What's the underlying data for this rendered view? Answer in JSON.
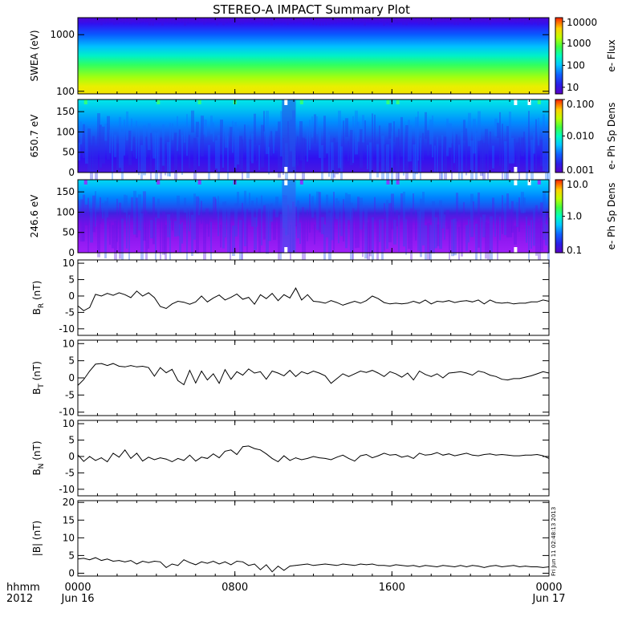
{
  "title": "STEREO-A IMPACT Summary Plot",
  "x_axis": {
    "row1_label": "hhmm",
    "row2_label": "2012",
    "ticks": [
      {
        "hour": 0,
        "top": "0000",
        "bottom": "Jun 16"
      },
      {
        "hour": 8,
        "top": "0800",
        "bottom": ""
      },
      {
        "hour": 16,
        "top": "1600",
        "bottom": ""
      },
      {
        "hour": 24,
        "top": "0000",
        "bottom": "Jun 17"
      }
    ],
    "range_hours": [
      0,
      24
    ]
  },
  "footer_stamp": "Fri Jun 11 02:48:13 2013",
  "spectrograms": [
    {
      "id": "swea",
      "ylabel": "SWEA (eV)",
      "yscale": "log",
      "yrange": [
        90,
        2000
      ],
      "yticks": [
        "100",
        "1000"
      ],
      "ytick_values": [
        100,
        1000
      ],
      "colorbar": {
        "scale": "log",
        "range": [
          5,
          15000
        ],
        "ticks": [
          "10",
          "100",
          "1000",
          "10000"
        ],
        "tick_values": [
          10,
          100,
          1000,
          10000
        ],
        "label": "e- Flux"
      }
    },
    {
      "id": "pad650",
      "ylabel": "650.7 eV",
      "yscale": "linear",
      "yrange": [
        0,
        180
      ],
      "yticks": [
        "0",
        "50",
        "100",
        "150"
      ],
      "ytick_values": [
        0,
        50,
        100,
        150
      ],
      "colorbar": {
        "scale": "log",
        "range": [
          0.001,
          0.1
        ],
        "ticks": [
          "0.001",
          "0.010",
          "0.100"
        ],
        "tick_values": [
          0.001,
          0.01,
          0.1
        ],
        "label": "e- Ph Sp Dens"
      }
    },
    {
      "id": "pad246",
      "ylabel": "246.6 eV",
      "yscale": "linear",
      "yrange": [
        0,
        180
      ],
      "yticks": [
        "0",
        "50",
        "100",
        "150"
      ],
      "ytick_values": [
        0,
        50,
        100,
        150
      ],
      "colorbar": {
        "scale": "log",
        "range": [
          0.1,
          10
        ],
        "ticks": [
          "0.1",
          "1.0",
          "10.0"
        ],
        "tick_values": [
          0.1,
          1,
          10
        ],
        "label": "e- Ph Sp Dens"
      }
    }
  ],
  "chart_data": [
    {
      "type": "line",
      "id": "br",
      "ylabel_main": "B",
      "ylabel_sub": "R",
      "ylabel_unit": "(nT)",
      "ylim": [
        -12,
        11
      ],
      "yticks": [
        "-10",
        "-5",
        "0",
        "5",
        "10"
      ],
      "ytick_values": [
        -10,
        -5,
        0,
        5,
        10
      ],
      "x_hours": [
        0,
        0.3,
        0.6,
        0.9,
        1.2,
        1.5,
        1.8,
        2.1,
        2.4,
        2.7,
        3.0,
        3.3,
        3.6,
        3.9,
        4.2,
        4.5,
        4.8,
        5.1,
        5.4,
        5.7,
        6.0,
        6.3,
        6.6,
        6.9,
        7.2,
        7.5,
        7.8,
        8.1,
        8.4,
        8.7,
        9.0,
        9.3,
        9.6,
        9.9,
        10.2,
        10.5,
        10.8,
        11.1,
        11.4,
        11.7,
        12.0,
        12.3,
        12.6,
        12.9,
        13.2,
        13.5,
        13.8,
        14.1,
        14.4,
        14.7,
        15.0,
        15.3,
        15.6,
        15.9,
        16.2,
        16.5,
        16.8,
        17.1,
        17.4,
        17.7,
        18.0,
        18.3,
        18.6,
        18.9,
        19.2,
        19.5,
        19.8,
        20.1,
        20.4,
        20.7,
        21.0,
        21.3,
        21.6,
        21.9,
        22.2,
        22.5,
        22.8,
        23.1,
        23.4,
        23.7,
        24.0
      ],
      "values": [
        -3,
        -4.5,
        -3.5,
        0.5,
        0,
        0.8,
        0.2,
        1,
        0.4,
        -0.5,
        1.5,
        0,
        1,
        -0.5,
        -3.2,
        -3.8,
        -2.4,
        -1.6,
        -1.9,
        -2.5,
        -1.8,
        0,
        -1.8,
        -0.6,
        0.3,
        -1.2,
        -0.4,
        0.6,
        -1,
        -0.4,
        -2.5,
        0.4,
        -0.8,
        0.8,
        -1.4,
        0.4,
        -0.6,
        2.4,
        -1.2,
        0.4,
        -1.6,
        -1.8,
        -2.2,
        -1.4,
        -2,
        -2.8,
        -2.2,
        -1.6,
        -2.2,
        -1.4,
        0,
        -0.8,
        -2,
        -2.4,
        -2.2,
        -2.4,
        -2.2,
        -1.6,
        -2.2,
        -1.2,
        -2.4,
        -1.6,
        -1.8,
        -1.4,
        -2,
        -1.6,
        -1.4,
        -1.8,
        -1.2,
        -2.4,
        -1.2,
        -2,
        -2.2,
        -2,
        -2.4,
        -2.2,
        -2.2,
        -1.8,
        -1.8,
        -1.2,
        -1.6
      ]
    },
    {
      "type": "line",
      "id": "bt",
      "ylabel_main": "B",
      "ylabel_sub": "T",
      "ylabel_unit": "(nT)",
      "ylim": [
        -11,
        11
      ],
      "yticks": [
        "-10",
        "-5",
        "0",
        "5",
        "10"
      ],
      "ytick_values": [
        -10,
        -5,
        0,
        5,
        10
      ],
      "x_hours": [
        0,
        0.3,
        0.6,
        0.9,
        1.2,
        1.5,
        1.8,
        2.1,
        2.4,
        2.7,
        3.0,
        3.3,
        3.6,
        3.9,
        4.2,
        4.5,
        4.8,
        5.1,
        5.4,
        5.7,
        6.0,
        6.3,
        6.6,
        6.9,
        7.2,
        7.5,
        7.8,
        8.1,
        8.4,
        8.7,
        9.0,
        9.3,
        9.6,
        9.9,
        10.2,
        10.5,
        10.8,
        11.1,
        11.4,
        11.7,
        12.0,
        12.3,
        12.6,
        12.9,
        13.2,
        13.5,
        13.8,
        14.1,
        14.4,
        14.7,
        15.0,
        15.3,
        15.6,
        15.9,
        16.2,
        16.5,
        16.8,
        17.1,
        17.4,
        17.7,
        18.0,
        18.3,
        18.6,
        18.9,
        19.2,
        19.5,
        19.8,
        20.1,
        20.4,
        20.7,
        21.0,
        21.3,
        21.6,
        21.9,
        22.2,
        22.5,
        22.8,
        23.1,
        23.4,
        23.7,
        24.0
      ],
      "values": [
        -2.2,
        -0.5,
        2,
        4,
        4.2,
        3.6,
        4.2,
        3.4,
        3.2,
        3.6,
        3.2,
        3.4,
        3,
        0.5,
        3,
        1.5,
        2.5,
        -0.8,
        -2,
        2.2,
        -1.5,
        2,
        -0.6,
        1.2,
        -1.6,
        2.4,
        -0.4,
        1.8,
        0.8,
        2.6,
        1.4,
        1.8,
        -0.4,
        2,
        1.4,
        0.6,
        2.2,
        0.4,
        1.8,
        1.2,
        2,
        1.4,
        0.6,
        -1.6,
        -0.2,
        1.2,
        0.4,
        1.2,
        2,
        1.6,
        2.2,
        1.4,
        0.4,
        1.8,
        1.2,
        0.2,
        1.4,
        -0.6,
        2,
        1,
        0.4,
        1.2,
        0,
        1.4,
        1.6,
        1.8,
        1.4,
        0.8,
        2,
        1.6,
        0.8,
        0.4,
        -0.4,
        -0.6,
        -0.2,
        -0.2,
        0.2,
        0.6,
        1.2,
        1.8,
        1.4
      ]
    },
    {
      "type": "line",
      "id": "bn",
      "ylabel_main": "B",
      "ylabel_sub": "N",
      "ylabel_unit": "(nT)",
      "ylim": [
        -12,
        11
      ],
      "yticks": [
        "-10",
        "-5",
        "0",
        "5",
        "10"
      ],
      "ytick_values": [
        -10,
        -5,
        0,
        5,
        10
      ],
      "x_hours": [
        0,
        0.3,
        0.6,
        0.9,
        1.2,
        1.5,
        1.8,
        2.1,
        2.4,
        2.7,
        3.0,
        3.3,
        3.6,
        3.9,
        4.2,
        4.5,
        4.8,
        5.1,
        5.4,
        5.7,
        6.0,
        6.3,
        6.6,
        6.9,
        7.2,
        7.5,
        7.8,
        8.1,
        8.4,
        8.7,
        9.0,
        9.3,
        9.6,
        9.9,
        10.2,
        10.5,
        10.8,
        11.1,
        11.4,
        11.7,
        12.0,
        12.3,
        12.6,
        12.9,
        13.2,
        13.5,
        13.8,
        14.1,
        14.4,
        14.7,
        15.0,
        15.3,
        15.6,
        15.9,
        16.2,
        16.5,
        16.8,
        17.1,
        17.4,
        17.7,
        18.0,
        18.3,
        18.6,
        18.9,
        19.2,
        19.5,
        19.8,
        20.1,
        20.4,
        20.7,
        21.0,
        21.3,
        21.6,
        21.9,
        22.2,
        22.5,
        22.8,
        23.1,
        23.4,
        23.7,
        24.0
      ],
      "values": [
        0.5,
        -1.5,
        0,
        -1.2,
        -0.4,
        -1.6,
        1,
        -0.2,
        2,
        -0.6,
        1,
        -1.4,
        -0.2,
        -1,
        -0.4,
        -0.8,
        -1.6,
        -0.6,
        -1.2,
        0.4,
        -1.4,
        -0.2,
        -0.6,
        0.8,
        -0.4,
        1.6,
        2,
        0.6,
        3,
        3.2,
        2.4,
        2,
        0.8,
        -0.6,
        -1.6,
        0.2,
        -1.2,
        -0.4,
        -1,
        -0.6,
        0,
        -0.4,
        -0.6,
        -1,
        -0.2,
        0.4,
        -0.6,
        -1.4,
        0.2,
        0.6,
        -0.4,
        0.2,
        1,
        0.4,
        0.6,
        -0.2,
        0.2,
        -0.6,
        1,
        0.4,
        0.6,
        1.2,
        0.4,
        0.8,
        0.2,
        0.6,
        1,
        0.4,
        0.2,
        0.6,
        0.8,
        0.4,
        0.6,
        0.4,
        0.2,
        0.2,
        0.4,
        0.4,
        0.6,
        0.2,
        -0.6
      ]
    },
    {
      "type": "line",
      "id": "bmag",
      "ylabel_main": "|B|",
      "ylabel_sub": "",
      "ylabel_unit": "(nT)",
      "ylim": [
        -0.8,
        20.5
      ],
      "yticks": [
        "0",
        "5",
        "10",
        "15",
        "20"
      ],
      "ytick_values": [
        0,
        5,
        10,
        15,
        20
      ],
      "x_hours": [
        0,
        0.3,
        0.6,
        0.9,
        1.2,
        1.5,
        1.8,
        2.1,
        2.4,
        2.7,
        3.0,
        3.3,
        3.6,
        3.9,
        4.2,
        4.5,
        4.8,
        5.1,
        5.4,
        5.7,
        6.0,
        6.3,
        6.6,
        6.9,
        7.2,
        7.5,
        7.8,
        8.1,
        8.4,
        8.7,
        9.0,
        9.3,
        9.6,
        9.9,
        10.2,
        10.5,
        10.8,
        11.1,
        11.4,
        11.7,
        12.0,
        12.3,
        12.6,
        12.9,
        13.2,
        13.5,
        13.8,
        14.1,
        14.4,
        14.7,
        15.0,
        15.3,
        15.6,
        15.9,
        16.2,
        16.5,
        16.8,
        17.1,
        17.4,
        17.7,
        18.0,
        18.3,
        18.6,
        18.9,
        19.2,
        19.5,
        19.8,
        20.1,
        20.4,
        20.7,
        21.0,
        21.3,
        21.6,
        21.9,
        22.2,
        22.5,
        22.8,
        23.1,
        23.4,
        23.7,
        24.0
      ],
      "values": [
        4,
        4.2,
        3.8,
        4.4,
        3.6,
        4,
        3.4,
        3.6,
        3.2,
        3.6,
        2.6,
        3.4,
        3,
        3.4,
        3.2,
        1.6,
        2.6,
        2.2,
        3.8,
        3,
        2.4,
        3.2,
        2.8,
        3.4,
        2.6,
        3.2,
        2.4,
        3.4,
        3.2,
        2.2,
        2.6,
        1,
        2.4,
        0.4,
        2,
        0.8,
        2,
        2.2,
        2.4,
        2.6,
        2.2,
        2.4,
        2.6,
        2.4,
        2.2,
        2.6,
        2.4,
        2.2,
        2.6,
        2.4,
        2.6,
        2.2,
        2.2,
        2,
        2.4,
        2.2,
        2,
        2.2,
        1.8,
        2.2,
        2,
        1.8,
        2.2,
        2,
        1.8,
        2.2,
        1.8,
        2.2,
        2,
        1.6,
        2,
        2.2,
        1.8,
        2,
        2.2,
        1.8,
        2,
        1.8,
        1.8,
        1.6,
        1.8
      ]
    }
  ]
}
